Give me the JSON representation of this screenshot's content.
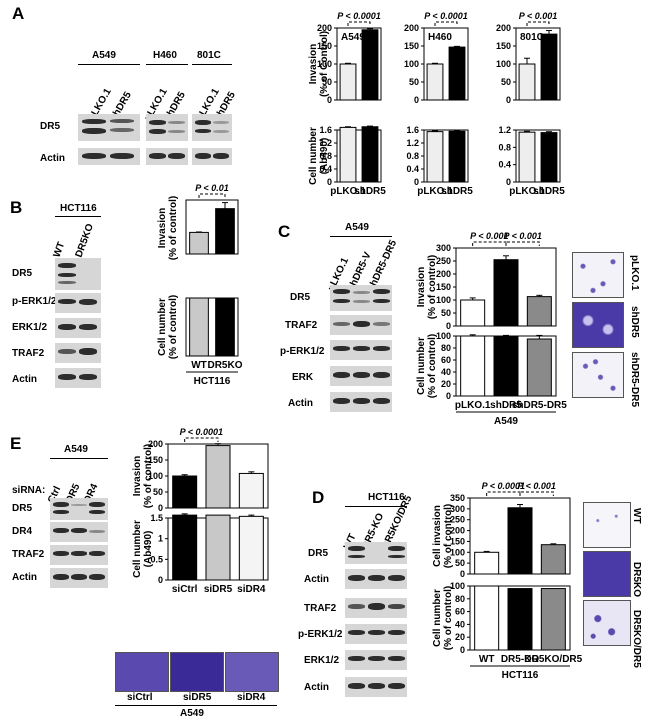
{
  "panels": {
    "A": {
      "label": "A",
      "cell_lines": [
        "A549",
        "H460",
        "801C"
      ],
      "lanes": [
        "pLKO.1",
        "shDR5"
      ],
      "blots": [
        "DR5",
        "Actin"
      ],
      "invasion_ylabel": "Invasion\n(% of Control)",
      "cell_ylabel": "Cell number\n(Ab490)",
      "xticks": [
        "pLKO.1",
        "shDR5"
      ],
      "pvals": [
        "P < 0.0001",
        "P < 0.0001",
        "P < 0.001"
      ]
    },
    "B": {
      "label": "B",
      "cell_line": "HCT116",
      "lanes": [
        "WT",
        "DR5KO"
      ],
      "blots": [
        "DR5",
        "p-ERK1/2",
        "ERK1/2",
        "TRAF2",
        "Actin"
      ],
      "invasion_ylabel": "Invasion\n(% of control)",
      "cell_ylabel": "Cell number\n(% of control)",
      "xticks": [
        "WT",
        "DR5KO"
      ],
      "pval": "P < 0.01",
      "footer": "HCT116"
    },
    "C": {
      "label": "C",
      "cell_line": "A549",
      "lanes": [
        "pLKO.1",
        "shDR5-V",
        "shDR5-DR5"
      ],
      "blots": [
        "DR5",
        "TRAF2",
        "p-ERK1/2",
        "ERK",
        "Actin"
      ],
      "invasion_ylabel": "Invasion\n(% of control)",
      "cell_ylabel": "Cell number\n(% of control)",
      "xticks": [
        "pLKO.1",
        "shDR5",
        "shDR5-DR5"
      ],
      "pvals": [
        "P < 0.001",
        "P < 0.001"
      ],
      "footer": "A549",
      "image_labels": [
        "pLKO.1",
        "shDR5",
        "shDR5-DR5"
      ]
    },
    "D": {
      "label": "D",
      "cell_line": "HCT116",
      "lanes": [
        "WT",
        "DR5-KO",
        "DR5KO/DR5"
      ],
      "blots": [
        "DR5",
        "Actin",
        "TRAF2",
        "p-ERK1/2",
        "ERK1/2",
        "Actin"
      ],
      "invasion_ylabel": "Cell invasion\n(% of control)",
      "cell_ylabel": "Cell number\n(% of control)",
      "xticks": [
        "WT",
        "DR5-KO",
        "DR5KO/DR5"
      ],
      "pvals": [
        "P < 0.0001",
        "P < 0.001"
      ],
      "footer": "HCT116",
      "image_labels": [
        "WT",
        "DR5KO",
        "DR5KO/DR5"
      ]
    },
    "E": {
      "label": "E",
      "cell_line": "A549",
      "sirna_label": "siRNA:",
      "lanes": [
        "Ctrl",
        "DR5",
        "DR4"
      ],
      "blots": [
        "DR5",
        "DR4",
        "TRAF2",
        "Actin"
      ],
      "invasion_ylabel": "Invasion\n(% of control)",
      "cell_ylabel": "Cell number\n(Ab490)",
      "xticks": [
        "siCtrl",
        "siDR5",
        "siDR4"
      ],
      "pval": "P < 0.0001",
      "footer": "A549",
      "image_labels": [
        "siCtrl",
        "siDR5",
        "siDR4"
      ]
    }
  },
  "chart_data": [
    {
      "id": "A-inv-A549",
      "type": "bar",
      "categories": [
        "pLKO.1",
        "shDR5"
      ],
      "values": [
        100,
        195
      ],
      "ylim": [
        0,
        200
      ],
      "yticks": [
        0,
        50,
        100,
        150,
        200
      ],
      "colors": [
        "#eeeeee",
        "#000000"
      ],
      "inset": "A549",
      "pval": "P < 0.0001"
    },
    {
      "id": "A-inv-H460",
      "type": "bar",
      "categories": [
        "pLKO.1",
        "shDR5"
      ],
      "values": [
        100,
        147
      ],
      "ylim": [
        0,
        200
      ],
      "yticks": [
        0,
        50,
        100,
        150,
        200
      ],
      "colors": [
        "#eeeeee",
        "#000000"
      ],
      "inset": "H460",
      "pval": "P < 0.0001"
    },
    {
      "id": "A-inv-801C",
      "type": "bar",
      "categories": [
        "pLKO.1",
        "shDR5"
      ],
      "values": [
        100,
        183
      ],
      "ylim": [
        0,
        200
      ],
      "yticks": [
        0,
        50,
        100,
        150,
        200
      ],
      "colors": [
        "#eeeeee",
        "#000000"
      ],
      "inset": "801C",
      "pval": "P < 0.001"
    },
    {
      "id": "A-cell-A549",
      "type": "bar",
      "categories": [
        "pLKO.1",
        "shDR5"
      ],
      "values": [
        1.68,
        1.7
      ],
      "ylim": [
        0,
        1.6
      ],
      "yticks": [
        0,
        0.4,
        0.8,
        1.2,
        1.6
      ],
      "colors": [
        "#eeeeee",
        "#000000"
      ]
    },
    {
      "id": "A-cell-H460",
      "type": "bar",
      "categories": [
        "pLKO.1",
        "shDR5"
      ],
      "values": [
        1.55,
        1.56
      ],
      "ylim": [
        0,
        1.6
      ],
      "yticks": [
        0,
        0.4,
        0.8,
        1.2,
        1.6
      ],
      "colors": [
        "#eeeeee",
        "#000000"
      ]
    },
    {
      "id": "A-cell-801C",
      "type": "bar",
      "categories": [
        "pLKO.1",
        "shDR5"
      ],
      "values": [
        1.15,
        1.14
      ],
      "ylim": [
        0,
        1.2
      ],
      "yticks": [
        0,
        0.4,
        0.8,
        1.2
      ],
      "colors": [
        "#eeeeee",
        "#000000"
      ]
    },
    {
      "id": "B-inv",
      "type": "bar",
      "categories": [
        "WT",
        "DR5KO"
      ],
      "values": [
        100,
        210
      ],
      "ylim": [
        0,
        250
      ],
      "colors": [
        "#c9c9c9",
        "#000000"
      ],
      "pval": "P < 0.01"
    },
    {
      "id": "B-cell",
      "type": "bar",
      "categories": [
        "WT",
        "DR5KO"
      ],
      "values": [
        100,
        100
      ],
      "ylim": [
        0,
        100
      ],
      "colors": [
        "#c9c9c9",
        "#000000"
      ]
    },
    {
      "id": "C-inv",
      "type": "bar",
      "categories": [
        "pLKO.1",
        "shDR5",
        "shDR5-DR5"
      ],
      "values": [
        100,
        255,
        113
      ],
      "ylim": [
        0,
        300
      ],
      "yticks": [
        0,
        50,
        100,
        150,
        200,
        250,
        300
      ],
      "colors": [
        "#ffffff",
        "#000000",
        "#8a8a8a"
      ],
      "pvals": [
        "P < 0.001",
        "P < 0.001"
      ]
    },
    {
      "id": "C-cell",
      "type": "bar",
      "categories": [
        "pLKO.1",
        "shDR5",
        "shDR5-DR5"
      ],
      "values": [
        100,
        100,
        95
      ],
      "ylim": [
        0,
        100
      ],
      "yticks": [
        0,
        20,
        40,
        60,
        80,
        100
      ],
      "colors": [
        "#ffffff",
        "#000000",
        "#8a8a8a"
      ]
    },
    {
      "id": "E-inv",
      "type": "bar",
      "categories": [
        "siCtrl",
        "siDR5",
        "siDR4"
      ],
      "values": [
        100,
        195,
        108
      ],
      "ylim": [
        0,
        200
      ],
      "yticks": [
        0,
        50,
        100,
        150,
        200
      ],
      "colors": [
        "#000000",
        "#c8c8c8",
        "#f4f4f4"
      ],
      "pval": "P < 0.0001"
    },
    {
      "id": "E-cell",
      "type": "bar",
      "categories": [
        "siCtrl",
        "siDR5",
        "siDR4"
      ],
      "values": [
        1.57,
        1.57,
        1.54
      ],
      "ylim": [
        0,
        1.5
      ],
      "yticks": [
        0,
        0.5,
        1.0,
        1.5
      ],
      "colors": [
        "#000000",
        "#c8c8c8",
        "#f4f4f4"
      ]
    },
    {
      "id": "D-inv",
      "type": "bar",
      "categories": [
        "WT",
        "DR5-KO",
        "DR5KO/DR5"
      ],
      "values": [
        100,
        305,
        135
      ],
      "ylim": [
        0,
        350
      ],
      "yticks": [
        0,
        50,
        100,
        150,
        200,
        250,
        300,
        350
      ],
      "colors": [
        "#ffffff",
        "#000000",
        "#8a8a8a"
      ],
      "pvals": [
        "P < 0.0001",
        "P < 0.001"
      ]
    },
    {
      "id": "D-cell",
      "type": "bar",
      "categories": [
        "WT",
        "DR5-KO",
        "DR5KO/DR5"
      ],
      "values": [
        100,
        96,
        96
      ],
      "ylim": [
        0,
        100
      ],
      "yticks": [
        0,
        20,
        40,
        60,
        80,
        100
      ],
      "colors": [
        "#ffffff",
        "#000000",
        "#8a8a8a"
      ]
    }
  ]
}
